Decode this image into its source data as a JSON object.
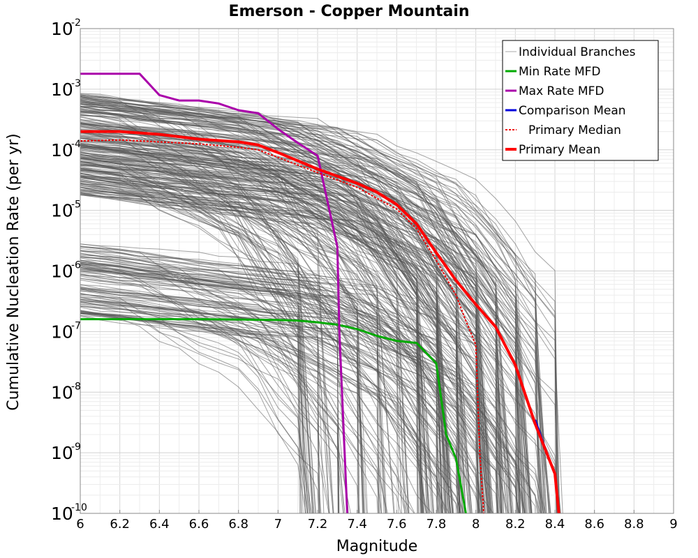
{
  "chart_data": {
    "type": "line",
    "title": "Emerson - Copper Mountain",
    "xlabel": "Magnitude",
    "ylabel": "Cumulative Nucleation Rate (per yr)",
    "xlim": [
      6,
      9
    ],
    "ylim_log10": [
      -10,
      -2
    ],
    "yscale": "log",
    "grid": true,
    "legend_position": "top-right",
    "x_ticks": [
      "6",
      "6.2",
      "6.4",
      "6.6",
      "6.8",
      "7",
      "7.2",
      "7.4",
      "7.6",
      "7.8",
      "8",
      "8.2",
      "8.4",
      "8.6",
      "8.8",
      "9"
    ],
    "y_tick_base": "10",
    "y_tick_exponents": [
      "-10",
      "-9",
      "-8",
      "-7",
      "-6",
      "-5",
      "-4",
      "-3",
      "-2"
    ],
    "legend": [
      "Individual Branches",
      "Min Rate MFD",
      "Max Rate MFD",
      "Comparison Mean",
      "Primary Median",
      "Primary Mean"
    ],
    "colors": {
      "branches": "#555555",
      "min": "#00aa00",
      "max": "#aa00aa",
      "comparison": "#0000dd",
      "median": "#ee0000",
      "mean": "#ff0000"
    },
    "series": [
      {
        "name": "Min Rate MFD",
        "x": [
          6.0,
          6.2,
          6.4,
          6.6,
          6.8,
          7.0,
          7.1,
          7.2,
          7.3,
          7.4,
          7.5,
          7.6,
          7.7,
          7.8,
          7.85,
          7.9,
          7.95
        ],
        "y": [
          1.6e-07,
          1.6e-07,
          1.6e-07,
          1.6e-07,
          1.58e-07,
          1.55e-07,
          1.52e-07,
          1.42e-07,
          1.3e-07,
          1.1e-07,
          8.5e-08,
          7e-08,
          6.5e-08,
          3e-08,
          2e-09,
          8e-10,
          1e-10
        ]
      },
      {
        "name": "Max Rate MFD",
        "x": [
          6.0,
          6.2,
          6.3,
          6.4,
          6.5,
          6.6,
          6.7,
          6.8,
          6.9,
          7.0,
          7.1,
          7.2,
          7.3,
          7.31,
          7.35
        ],
        "y": [
          0.0018,
          0.0018,
          0.0018,
          0.0008,
          0.00065,
          0.00065,
          0.00058,
          0.00045,
          0.0004,
          0.00022,
          0.00013,
          8e-05,
          2.5e-06,
          1e-07,
          1e-10
        ]
      },
      {
        "name": "Comparison Mean",
        "x": [
          8.3,
          8.35,
          8.4,
          8.42
        ],
        "y": [
          3.5e-09,
          1.2e-09,
          4.5e-10,
          1e-10
        ]
      },
      {
        "name": "Primary Median",
        "x": [
          6.0,
          6.2,
          6.4,
          6.6,
          6.8,
          6.9,
          7.0,
          7.2,
          7.4,
          7.6,
          7.7,
          7.8,
          7.9,
          7.95,
          8.0,
          8.02,
          8.04
        ],
        "y": [
          0.00014,
          0.000145,
          0.000135,
          0.000125,
          0.00011,
          0.0001,
          7.5e-05,
          4.2e-05,
          2.4e-05,
          1.05e-05,
          5e-06,
          1.5e-06,
          4e-07,
          1.5e-07,
          6e-08,
          1e-09,
          1e-10
        ]
      },
      {
        "name": "Primary Mean",
        "x": [
          6.0,
          6.2,
          6.4,
          6.6,
          6.8,
          6.9,
          7.0,
          7.2,
          7.4,
          7.5,
          7.6,
          7.7,
          7.8,
          7.9,
          8.0,
          8.1,
          8.2,
          8.3,
          8.4,
          8.42
        ],
        "y": [
          0.0002,
          0.0002,
          0.00018,
          0.00015,
          0.000135,
          0.00012,
          9e-05,
          4.8e-05,
          2.8e-05,
          2e-05,
          1.25e-05,
          6e-06,
          2e-06,
          7e-07,
          2.8e-07,
          1.2e-07,
          2.8e-08,
          3e-09,
          4.5e-10,
          1e-10
        ]
      }
    ]
  }
}
